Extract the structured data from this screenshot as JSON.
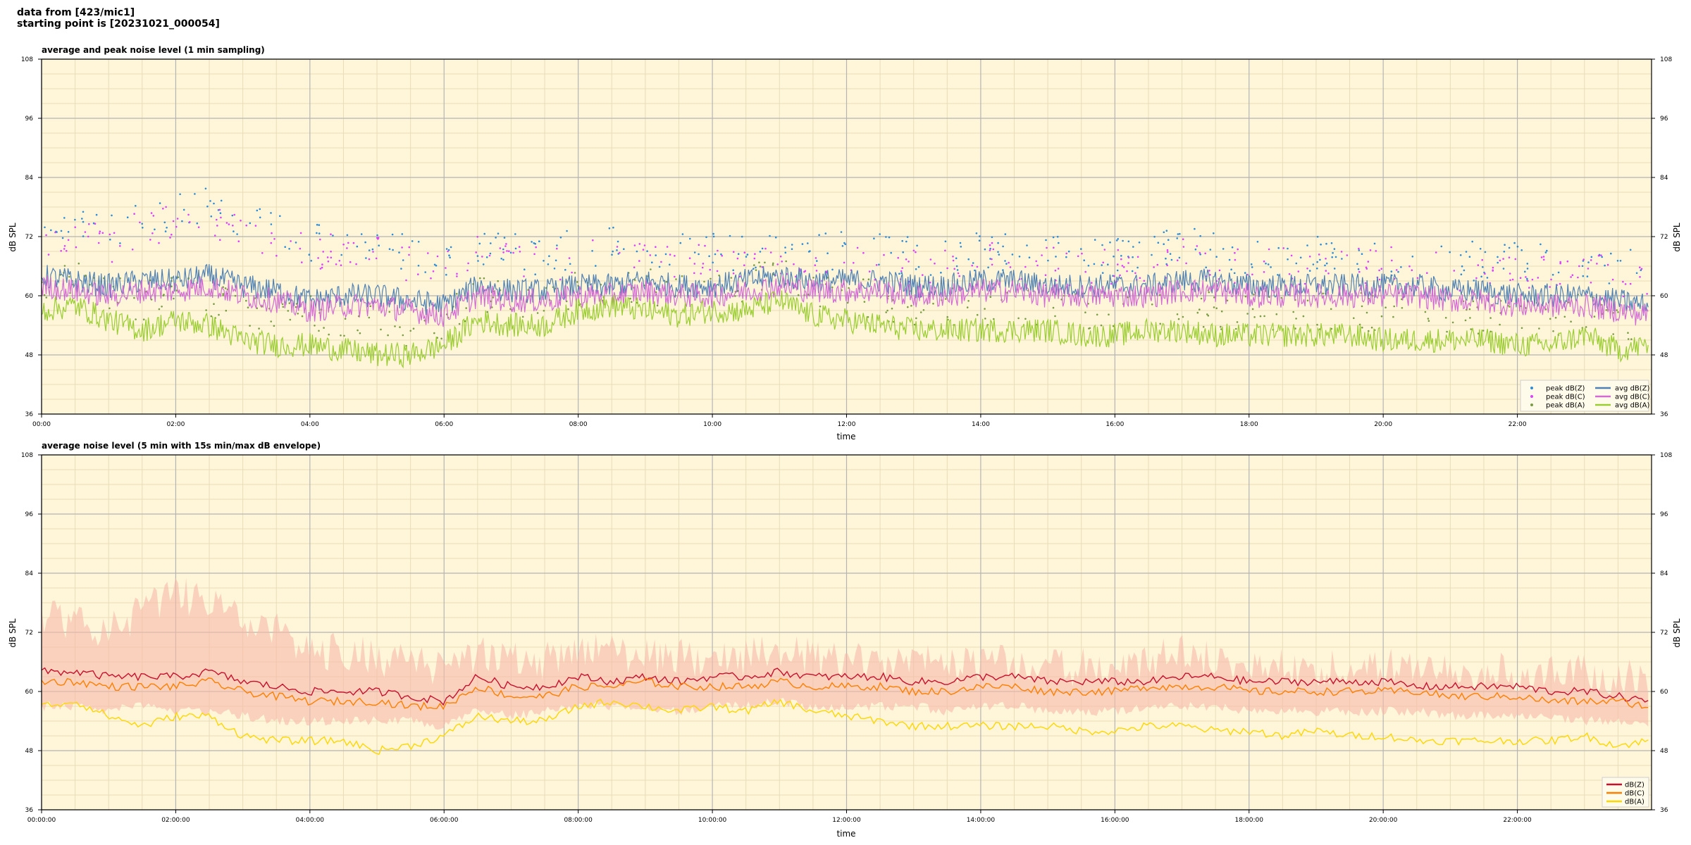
{
  "header": {
    "line1": "data from [423/mic1]",
    "line2": "starting point is [20231021_000054]"
  },
  "colors": {
    "plot_bg": "#fff6d9",
    "grid_major": "#b4b4b4",
    "grid_minor": "#e8ddb8",
    "avg_z": "#4f81b4",
    "avg_c": "#d46bd4",
    "avg_a": "#9acd32",
    "env_fill": "#f7b9a8",
    "db_z": "#c8102e",
    "db_c": "#ff7f00",
    "db_a": "#ffd700"
  },
  "chart_data": [
    {
      "type": "line",
      "title": "average and peak noise level (1 min sampling)",
      "xlabel": "time",
      "ylabel": "dB SPL",
      "ylabel_right": "dB SPL",
      "xlim_hours": [
        0,
        24
      ],
      "ylim": [
        36,
        108
      ],
      "yticks": [
        36,
        48,
        60,
        72,
        84,
        96,
        108
      ],
      "xtick_hours": [
        0,
        2,
        4,
        6,
        8,
        10,
        12,
        14,
        16,
        18,
        20,
        22
      ],
      "xtick_labels": [
        "00:00",
        "02:00",
        "04:00",
        "06:00",
        "08:00",
        "10:00",
        "12:00",
        "14:00",
        "16:00",
        "18:00",
        "20:00",
        "22:00"
      ],
      "grid": true,
      "legend_position": "lower-right",
      "legend": [
        "peak dB(Z)",
        "peak dB(C)",
        "peak dB(A)",
        "avg dB(Z)",
        "avg dB(C)",
        "avg dB(A)"
      ],
      "x_hours": [
        0,
        0.5,
        1,
        1.5,
        2,
        2.5,
        3,
        3.5,
        4,
        4.5,
        5,
        5.5,
        6,
        6.5,
        7,
        7.5,
        8,
        8.5,
        9,
        9.5,
        10,
        10.5,
        11,
        11.5,
        12,
        12.5,
        13,
        13.5,
        14,
        14.5,
        15,
        15.5,
        16,
        16.5,
        17,
        17.5,
        18,
        18.5,
        19,
        19.5,
        20,
        20.5,
        21,
        21.5,
        22,
        22.5,
        23,
        23.5,
        23.95
      ],
      "series": [
        {
          "name": "avg dB(Z)",
          "kind": "line",
          "values": [
            64,
            63,
            62,
            63,
            63,
            64,
            62,
            61,
            59,
            60,
            60,
            59,
            58,
            62,
            61,
            61,
            62,
            62,
            63,
            62,
            62,
            63,
            64,
            63,
            63,
            63,
            62,
            62,
            63,
            63,
            62,
            62,
            62,
            62,
            63,
            63,
            62,
            62,
            62,
            62,
            62,
            62,
            61,
            61,
            60,
            60,
            60,
            59,
            58
          ]
        },
        {
          "name": "avg dB(C)",
          "kind": "line",
          "values": [
            62,
            61,
            60,
            61,
            61,
            62,
            60,
            59,
            57,
            58,
            58,
            57,
            56,
            60,
            59,
            59,
            60,
            60,
            61,
            60,
            60,
            61,
            62,
            61,
            61,
            61,
            60,
            60,
            61,
            61,
            60,
            60,
            60,
            60,
            61,
            61,
            60,
            60,
            60,
            60,
            60,
            60,
            59,
            59,
            58,
            58,
            58,
            57,
            56
          ]
        },
        {
          "name": "avg dB(A)",
          "kind": "line",
          "values": [
            57,
            58,
            55,
            53,
            55,
            54,
            51,
            50,
            50,
            49,
            48,
            48,
            50,
            55,
            54,
            54,
            57,
            58,
            57,
            56,
            57,
            57,
            59,
            56,
            55,
            54,
            53,
            53,
            53,
            53,
            53,
            52,
            52,
            53,
            53,
            52,
            52,
            52,
            52,
            52,
            51,
            51,
            51,
            51,
            50,
            50,
            52,
            49,
            50
          ]
        },
        {
          "name": "peak dB(Z)",
          "kind": "scatter",
          "values": [
            74,
            75,
            72,
            76,
            77,
            78,
            75,
            74,
            71,
            72,
            70,
            69,
            67,
            70,
            69,
            68,
            70,
            70,
            69,
            69,
            69,
            69,
            70,
            69,
            69,
            69,
            68,
            68,
            69,
            69,
            68,
            68,
            68,
            69,
            70,
            69,
            68,
            68,
            68,
            68,
            68,
            68,
            67,
            67,
            67,
            67,
            67,
            66,
            65
          ]
        },
        {
          "name": "peak dB(C)",
          "kind": "scatter",
          "values": [
            72,
            73,
            70,
            74,
            75,
            76,
            73,
            72,
            69,
            70,
            68,
            67,
            65,
            68,
            67,
            66,
            68,
            68,
            67,
            67,
            67,
            67,
            68,
            67,
            67,
            67,
            66,
            66,
            67,
            67,
            66,
            66,
            66,
            67,
            68,
            67,
            66,
            66,
            66,
            66,
            66,
            66,
            65,
            65,
            65,
            65,
            65,
            64,
            63
          ]
        },
        {
          "name": "peak dB(A)",
          "kind": "scatter",
          "values": [
            63,
            64,
            60,
            59,
            61,
            60,
            57,
            56,
            56,
            55,
            54,
            53,
            55,
            60,
            59,
            59,
            62,
            63,
            62,
            61,
            62,
            62,
            64,
            61,
            60,
            59,
            58,
            58,
            58,
            58,
            58,
            57,
            57,
            58,
            58,
            57,
            57,
            57,
            57,
            57,
            56,
            56,
            56,
            56,
            55,
            55,
            57,
            54,
            55
          ]
        }
      ]
    },
    {
      "type": "line",
      "title": "average noise level (5 min with 15s min/max dB envelope)",
      "xlabel": "time",
      "ylabel": "dB SPL",
      "ylabel_right": "dB SPL",
      "xlim_hours": [
        0,
        24
      ],
      "ylim": [
        36,
        108
      ],
      "yticks": [
        36,
        48,
        60,
        72,
        84,
        96,
        108
      ],
      "xtick_hours": [
        0,
        2,
        4,
        6,
        8,
        10,
        12,
        14,
        16,
        18,
        20,
        22
      ],
      "xtick_labels": [
        "00:00:00",
        "02:00:00",
        "04:00:00",
        "06:00:00",
        "08:00:00",
        "10:00:00",
        "12:00:00",
        "14:00:00",
        "16:00:00",
        "18:00:00",
        "20:00:00",
        "22:00:00"
      ],
      "grid": true,
      "legend_position": "lower-right",
      "legend": [
        "dB(Z)",
        "dB(C)",
        "dB(A)"
      ],
      "x_hours": [
        0,
        0.5,
        1,
        1.5,
        2,
        2.5,
        3,
        3.5,
        4,
        4.5,
        5,
        5.5,
        6,
        6.5,
        7,
        7.5,
        8,
        8.5,
        9,
        9.5,
        10,
        10.5,
        11,
        11.5,
        12,
        12.5,
        13,
        13.5,
        14,
        14.5,
        15,
        15.5,
        16,
        16.5,
        17,
        17.5,
        18,
        18.5,
        19,
        19.5,
        20,
        20.5,
        21,
        21.5,
        22,
        22.5,
        23,
        23.5,
        23.95
      ],
      "envelope": {
        "max": [
          80,
          78,
          76,
          80,
          84,
          82,
          78,
          76,
          72,
          72,
          71,
          70,
          68,
          72,
          70,
          70,
          72,
          72,
          71,
          71,
          70,
          71,
          72,
          71,
          70,
          70,
          70,
          69,
          70,
          70,
          69,
          69,
          69,
          70,
          72,
          70,
          69,
          69,
          69,
          69,
          69,
          69,
          68,
          68,
          68,
          68,
          68,
          67,
          66
        ],
        "min": [
          58,
          58,
          57,
          58,
          57,
          57,
          56,
          55,
          55,
          55,
          55,
          55,
          54,
          57,
          56,
          57,
          58,
          58,
          58,
          57,
          58,
          58,
          59,
          58,
          58,
          58,
          58,
          57,
          58,
          58,
          57,
          57,
          57,
          58,
          58,
          58,
          57,
          57,
          57,
          57,
          57,
          57,
          56,
          56,
          56,
          56,
          55,
          55,
          54
        ]
      },
      "series": [
        {
          "name": "dB(Z)",
          "values": [
            64,
            64,
            63,
            63,
            63,
            64,
            62,
            61,
            60,
            60,
            60,
            59,
            58,
            63,
            61,
            61,
            63,
            62,
            63,
            62,
            63,
            63,
            64,
            63,
            63,
            63,
            62,
            62,
            63,
            63,
            62,
            62,
            62,
            62,
            63,
            63,
            62,
            62,
            62,
            62,
            62,
            61,
            61,
            61,
            61,
            60,
            60,
            59,
            58
          ]
        },
        {
          "name": "dB(C)",
          "values": [
            62,
            62,
            61,
            61,
            61,
            62,
            60,
            59,
            58,
            58,
            58,
            57,
            57,
            61,
            59,
            59,
            61,
            61,
            62,
            61,
            61,
            61,
            62,
            61,
            61,
            61,
            60,
            60,
            61,
            61,
            60,
            60,
            60,
            61,
            61,
            61,
            60,
            60,
            60,
            60,
            60,
            60,
            59,
            59,
            59,
            58,
            58,
            58,
            57
          ]
        },
        {
          "name": "dB(A)",
          "values": [
            57,
            58,
            55,
            53,
            55,
            55,
            51,
            50,
            50,
            50,
            48,
            49,
            51,
            55,
            54,
            54,
            57,
            58,
            57,
            56,
            57,
            56,
            58,
            56,
            55,
            54,
            53,
            53,
            53,
            53,
            53,
            52,
            52,
            53,
            53,
            52,
            52,
            51,
            52,
            51,
            51,
            50,
            50,
            50,
            50,
            50,
            51,
            49,
            50
          ]
        }
      ]
    }
  ]
}
